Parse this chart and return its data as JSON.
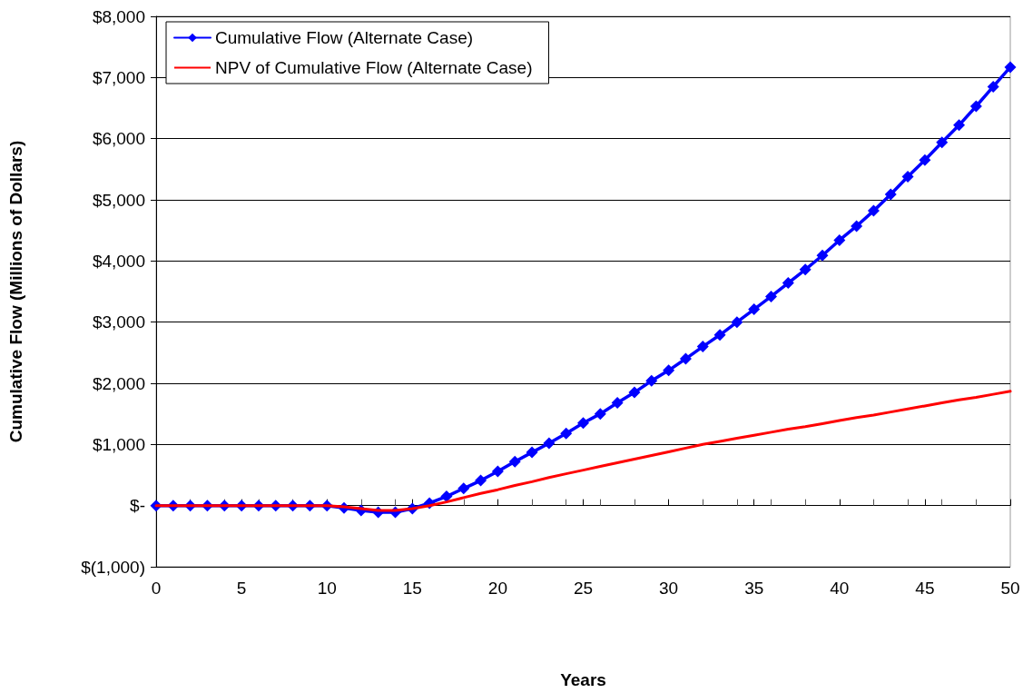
{
  "chart_data": {
    "type": "line",
    "xlabel": "Years",
    "ylabel": "Cumulative Flow (Millions of Dollars)",
    "x": [
      0,
      1,
      2,
      3,
      4,
      5,
      6,
      7,
      8,
      9,
      10,
      11,
      12,
      13,
      14,
      15,
      16,
      17,
      18,
      19,
      20,
      21,
      22,
      23,
      24,
      25,
      26,
      27,
      28,
      29,
      30,
      31,
      32,
      33,
      34,
      35,
      36,
      37,
      38,
      39,
      40,
      41,
      42,
      43,
      44,
      45,
      46,
      47,
      48,
      49,
      50
    ],
    "series": [
      {
        "name": "Cumulative Flow (Alternate Case)",
        "color": "#0000ff",
        "marker": "diamond",
        "values": [
          0,
          0,
          0,
          0,
          0,
          0,
          0,
          0,
          0,
          0,
          0,
          -40,
          -80,
          -110,
          -110,
          -50,
          40,
          150,
          280,
          410,
          560,
          720,
          870,
          1020,
          1180,
          1350,
          1500,
          1680,
          1850,
          2040,
          2210,
          2400,
          2600,
          2790,
          3000,
          3210,
          3420,
          3640,
          3860,
          4090,
          4340,
          4570,
          4820,
          5090,
          5380,
          5650,
          5940,
          6220,
          6530,
          6850,
          7170
        ]
      },
      {
        "name": "NPV of Cumulative Flow (Alternate Case)",
        "color": "#ff0000",
        "marker": "none",
        "values": [
          0,
          0,
          0,
          0,
          0,
          0,
          0,
          0,
          0,
          0,
          0,
          -20,
          -50,
          -80,
          -80,
          -50,
          0,
          60,
          130,
          200,
          260,
          330,
          390,
          460,
          520,
          580,
          640,
          700,
          760,
          820,
          880,
          940,
          1000,
          1050,
          1100,
          1150,
          1200,
          1250,
          1290,
          1340,
          1390,
          1440,
          1480,
          1530,
          1580,
          1630,
          1680,
          1730,
          1770,
          1820,
          1870
        ]
      }
    ],
    "xlim": [
      0,
      50
    ],
    "xticks": [
      0,
      5,
      10,
      15,
      20,
      25,
      30,
      35,
      40,
      45,
      50
    ],
    "ylim": [
      -1000,
      8000
    ],
    "yticks": [
      {
        "value": -1000,
        "label": "$(1,000)"
      },
      {
        "value": 0,
        "label": "$-"
      },
      {
        "value": 1000,
        "label": "$1,000"
      },
      {
        "value": 2000,
        "label": "$2,000"
      },
      {
        "value": 3000,
        "label": "$3,000"
      },
      {
        "value": 4000,
        "label": "$4,000"
      },
      {
        "value": 5000,
        "label": "$5,000"
      },
      {
        "value": 6000,
        "label": "$6,000"
      },
      {
        "value": 7000,
        "label": "$7,000"
      },
      {
        "value": 8000,
        "label": "$8,000"
      }
    ],
    "grid": "y",
    "legend": "top left",
    "line_style": "solid"
  }
}
